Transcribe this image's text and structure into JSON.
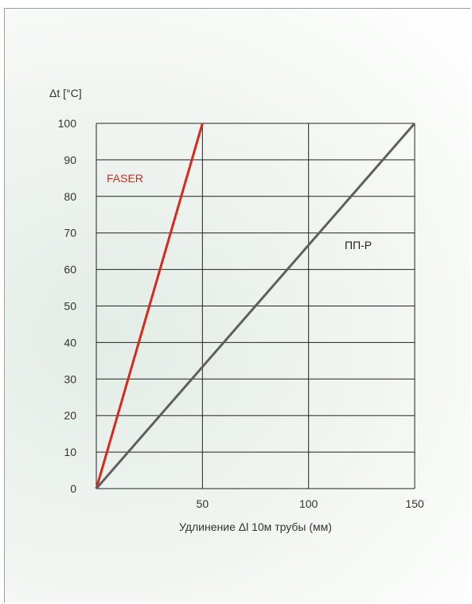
{
  "chart_data": {
    "type": "line",
    "ylabel": "Δt [°C]",
    "xlabel": "Удлинение Δl 10м трубы (мм)",
    "xlim": [
      0,
      150
    ],
    "ylim": [
      0,
      100
    ],
    "x_ticks": [
      "50",
      "100",
      "150"
    ],
    "y_ticks": [
      "0",
      "10",
      "20",
      "30",
      "40",
      "50",
      "60",
      "70",
      "80",
      "90",
      "100"
    ],
    "grid": true,
    "series": [
      {
        "name": "FASER",
        "color": "#d7291c",
        "points": [
          [
            0,
            0
          ],
          [
            50,
            100
          ]
        ]
      },
      {
        "name": "ПП-Р",
        "color": "#5f5f5f",
        "points": [
          [
            0,
            0
          ],
          [
            150,
            100
          ]
        ]
      }
    ]
  }
}
